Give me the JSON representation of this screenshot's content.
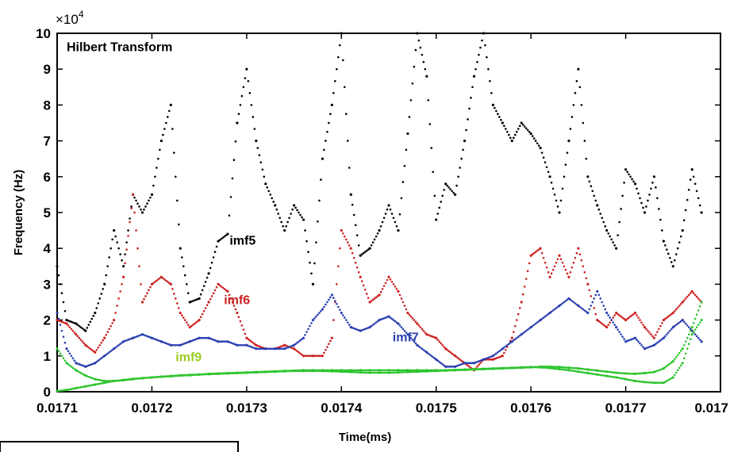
{
  "chart_data": {
    "type": "scatter",
    "title": "",
    "xlabel": "Time(ms)",
    "ylabel": "Frequency (Hz)",
    "y_exponent_label": "×10",
    "y_exponent_power": "4",
    "xlim": [
      0.0171,
      0.0178
    ],
    "ylim": [
      0,
      100000
    ],
    "x_ticks": [
      "0.0171",
      "0.0172",
      "0.0173",
      "0.0174",
      "0.0175",
      "0.0176",
      "0.0177",
      "0.017"
    ],
    "y_ticks": [
      "0",
      "1",
      "2",
      "3",
      "4",
      "5",
      "6",
      "7",
      "8",
      "9",
      "10"
    ],
    "grid": false,
    "annotations": [
      {
        "text": "Hilbert Transform",
        "x": 0.01711,
        "y": 95000,
        "color": "#000000"
      },
      {
        "text": "imf5",
        "x": 0.017282,
        "y": 41000,
        "color": "#000000"
      },
      {
        "text": "imf6",
        "x": 0.017276,
        "y": 24500,
        "color": "#cc2020"
      },
      {
        "text": "imf7",
        "x": 0.017454,
        "y": 14000,
        "color": "#2a3fb0"
      },
      {
        "text": "imf9",
        "x": 0.017225,
        "y": 8500,
        "color": "#9ccc22"
      }
    ],
    "series": [
      {
        "color": "#000000",
        "x": [
          0.0171,
          0.01711,
          0.01712,
          0.01713,
          0.01714,
          0.01715,
          0.01716,
          0.01717,
          0.01718,
          0.01719,
          0.0172,
          0.01721,
          0.01722,
          0.01723,
          0.01724,
          0.01725,
          0.01726,
          0.01727,
          0.01728,
          0.01729,
          0.0173,
          0.01731,
          0.01732,
          0.01733,
          0.01734,
          0.01735,
          0.01736,
          0.01737,
          0.01738,
          0.01739,
          0.0174,
          0.01741,
          0.01742,
          0.01743,
          0.01744,
          0.01745,
          0.01746,
          0.01747,
          0.01748,
          0.01749,
          0.0175,
          0.01751,
          0.01752,
          0.01753,
          0.01754,
          0.01755,
          0.01756,
          0.01757,
          0.01758,
          0.01759,
          0.0176,
          0.01761,
          0.01762,
          0.01763,
          0.01764,
          0.01765,
          0.01766,
          0.01767,
          0.01768,
          0.01769,
          0.0177,
          0.01771,
          0.01772,
          0.01773,
          0.01774,
          0.01775,
          0.01776,
          0.01777,
          0.01778
        ],
        "y": [
          35000,
          20000,
          19000,
          17000,
          22000,
          30000,
          45000,
          35000,
          55000,
          50000,
          55000,
          70000,
          80000,
          40000,
          25000,
          26000,
          33000,
          42000,
          44000,
          75000,
          90000,
          70000,
          58000,
          52000,
          45000,
          52000,
          48000,
          30000,
          65000,
          80000,
          100000,
          55000,
          38000,
          40000,
          45000,
          52000,
          45000,
          72000,
          100000,
          88000,
          48000,
          58000,
          55000,
          70000,
          88000,
          100000,
          80000,
          75000,
          70000,
          75000,
          72000,
          68000,
          60000,
          50000,
          70000,
          90000,
          60000,
          52000,
          45000,
          40000,
          62000,
          58000,
          50000,
          60000,
          42000,
          35000,
          45000,
          62000,
          50000
        ]
      },
      {
        "color": "#cc2020",
        "x": [
          0.0171,
          0.01711,
          0.01712,
          0.01713,
          0.01714,
          0.01715,
          0.01716,
          0.01717,
          0.01718,
          0.01719,
          0.0172,
          0.01721,
          0.01722,
          0.01723,
          0.01724,
          0.01725,
          0.01726,
          0.01727,
          0.01728,
          0.01729,
          0.0173,
          0.01731,
          0.01732,
          0.01733,
          0.01734,
          0.01735,
          0.01736,
          0.01737,
          0.01738,
          0.01739,
          0.0174,
          0.01741,
          0.01742,
          0.01743,
          0.01744,
          0.01745,
          0.01746,
          0.01747,
          0.01748,
          0.01749,
          0.0175,
          0.01751,
          0.01752,
          0.01753,
          0.01754,
          0.01755,
          0.01756,
          0.01757,
          0.01758,
          0.01759,
          0.0176,
          0.01761,
          0.01762,
          0.01763,
          0.01764,
          0.01765,
          0.01766,
          0.01767,
          0.01768,
          0.01769,
          0.0177,
          0.01771,
          0.01772,
          0.01773,
          0.01774,
          0.01775,
          0.01776,
          0.01777,
          0.01778
        ],
        "y": [
          20000,
          19000,
          16000,
          13000,
          11000,
          15000,
          20000,
          32000,
          55000,
          25000,
          30000,
          32000,
          30000,
          22000,
          18000,
          20000,
          25000,
          30000,
          28000,
          22000,
          15000,
          13000,
          12000,
          12000,
          13000,
          12000,
          10000,
          10000,
          10000,
          15000,
          45000,
          40000,
          32000,
          25000,
          27000,
          32000,
          28000,
          22000,
          19000,
          16000,
          15000,
          12000,
          10000,
          8000,
          6000,
          9000,
          9000,
          10000,
          15000,
          25000,
          38000,
          40000,
          32000,
          38000,
          32000,
          40000,
          30000,
          20000,
          18000,
          22000,
          20000,
          22000,
          18000,
          15000,
          20000,
          22000,
          25000,
          28000,
          25000
        ]
      },
      {
        "color": "#2a3fb0",
        "x": [
          0.0171,
          0.01711,
          0.01712,
          0.01713,
          0.01714,
          0.01715,
          0.01716,
          0.01717,
          0.01718,
          0.01719,
          0.0172,
          0.01721,
          0.01722,
          0.01723,
          0.01724,
          0.01725,
          0.01726,
          0.01727,
          0.01728,
          0.01729,
          0.0173,
          0.01731,
          0.01732,
          0.01733,
          0.01734,
          0.01735,
          0.01736,
          0.01737,
          0.01738,
          0.01739,
          0.0174,
          0.01741,
          0.01742,
          0.01743,
          0.01744,
          0.01745,
          0.01746,
          0.01747,
          0.01748,
          0.01749,
          0.0175,
          0.01751,
          0.01752,
          0.01753,
          0.01754,
          0.01755,
          0.01756,
          0.01757,
          0.01758,
          0.01759,
          0.0176,
          0.01761,
          0.01762,
          0.01763,
          0.01764,
          0.01765,
          0.01766,
          0.01767,
          0.01768,
          0.01769,
          0.0177,
          0.01771,
          0.01772,
          0.01773,
          0.01774,
          0.01775,
          0.01776,
          0.01777,
          0.01778
        ],
        "y": [
          22000,
          12000,
          8000,
          7000,
          8000,
          10000,
          12000,
          14000,
          15000,
          16000,
          15000,
          14000,
          13000,
          13000,
          14000,
          15000,
          15000,
          14000,
          14000,
          13000,
          13000,
          12000,
          12000,
          12000,
          12000,
          13000,
          15000,
          20000,
          23000,
          27000,
          22000,
          18000,
          17000,
          18000,
          20000,
          21000,
          19000,
          16000,
          13000,
          11000,
          9000,
          7000,
          7000,
          8000,
          8000,
          9000,
          10000,
          12000,
          14000,
          16000,
          18000,
          20000,
          22000,
          24000,
          26000,
          24000,
          22000,
          28000,
          22000,
          18000,
          14000,
          15000,
          12000,
          13000,
          15000,
          18000,
          20000,
          17000,
          14000
        ]
      },
      {
        "color": "#2fc52f",
        "x": [
          0.0171,
          0.01711,
          0.01712,
          0.01713,
          0.01714,
          0.01715,
          0.01716,
          0.01717,
          0.01718,
          0.01719,
          0.0172,
          0.01721,
          0.01722,
          0.01723,
          0.01724,
          0.01725,
          0.01726,
          0.01727,
          0.01728,
          0.01729,
          0.0173,
          0.01731,
          0.01732,
          0.01733,
          0.01734,
          0.01735,
          0.01736,
          0.01737,
          0.01738,
          0.01739,
          0.0174,
          0.01741,
          0.01742,
          0.01743,
          0.01744,
          0.01745,
          0.01746,
          0.01747,
          0.01748,
          0.01749,
          0.0175,
          0.01751,
          0.01752,
          0.01753,
          0.01754,
          0.01755,
          0.01756,
          0.01757,
          0.01758,
          0.01759,
          0.0176,
          0.01761,
          0.01762,
          0.01763,
          0.01764,
          0.01765,
          0.01766,
          0.01767,
          0.01768,
          0.01769,
          0.0177,
          0.01771,
          0.01772,
          0.01773,
          0.01774,
          0.01775,
          0.01776,
          0.01777,
          0.01778
        ],
        "y": [
          12000,
          8000,
          6000,
          4500,
          3500,
          3000,
          3000,
          3200,
          3500,
          3800,
          4000,
          4200,
          4300,
          4500,
          4600,
          4800,
          5000,
          5100,
          5200,
          5300,
          5400,
          5500,
          5600,
          5700,
          5800,
          5900,
          6000,
          6000,
          6000,
          6000,
          6000,
          6000,
          6000,
          6000,
          6000,
          6000,
          6000,
          6000,
          6000,
          6000,
          6000,
          6000,
          6100,
          6200,
          6300,
          6400,
          6500,
          6600,
          6700,
          6800,
          6900,
          6800,
          6600,
          6300,
          6000,
          5600,
          5200,
          4800,
          4400,
          4000,
          3500,
          3000,
          2700,
          2500,
          2500,
          4000,
          8000,
          16000,
          20000
        ]
      },
      {
        "color": "#2fc52f",
        "x": [
          0.0171,
          0.01711,
          0.01712,
          0.01713,
          0.01714,
          0.01715,
          0.01716,
          0.01717,
          0.01718,
          0.01719,
          0.0172,
          0.01721,
          0.01722,
          0.01723,
          0.01724,
          0.01725,
          0.01726,
          0.01727,
          0.01728,
          0.01729,
          0.0173,
          0.01731,
          0.01732,
          0.01733,
          0.01734,
          0.01735,
          0.01736,
          0.01737,
          0.01738,
          0.01739,
          0.0174,
          0.01741,
          0.01742,
          0.01743,
          0.01744,
          0.01745,
          0.01746,
          0.01747,
          0.01748,
          0.01749,
          0.0175,
          0.01751,
          0.01752,
          0.01753,
          0.01754,
          0.01755,
          0.01756,
          0.01757,
          0.01758,
          0.01759,
          0.0176,
          0.01761,
          0.01762,
          0.01763,
          0.01764,
          0.01765,
          0.01766,
          0.01767,
          0.01768,
          0.01769,
          0.0177,
          0.01771,
          0.01772,
          0.01773,
          0.01774,
          0.01775,
          0.01776,
          0.01777,
          0.01778
        ],
        "y": [
          200,
          500,
          1000,
          1500,
          2000,
          2500,
          3000,
          3300,
          3600,
          3800,
          4000,
          4200,
          4400,
          4600,
          4700,
          4800,
          4900,
          5000,
          5100,
          5200,
          5300,
          5400,
          5500,
          5600,
          5700,
          5800,
          5800,
          5800,
          5800,
          5700,
          5600,
          5500,
          5400,
          5300,
          5300,
          5300,
          5400,
          5500,
          5600,
          5700,
          5800,
          5900,
          6000,
          6100,
          6200,
          6300,
          6400,
          6500,
          6600,
          6700,
          6800,
          7000,
          7000,
          6900,
          6700,
          6500,
          6200,
          5900,
          5600,
          5300,
          5100,
          5000,
          5200,
          5500,
          6500,
          8500,
          12000,
          18000,
          25000
        ]
      }
    ]
  },
  "legend_box": ""
}
